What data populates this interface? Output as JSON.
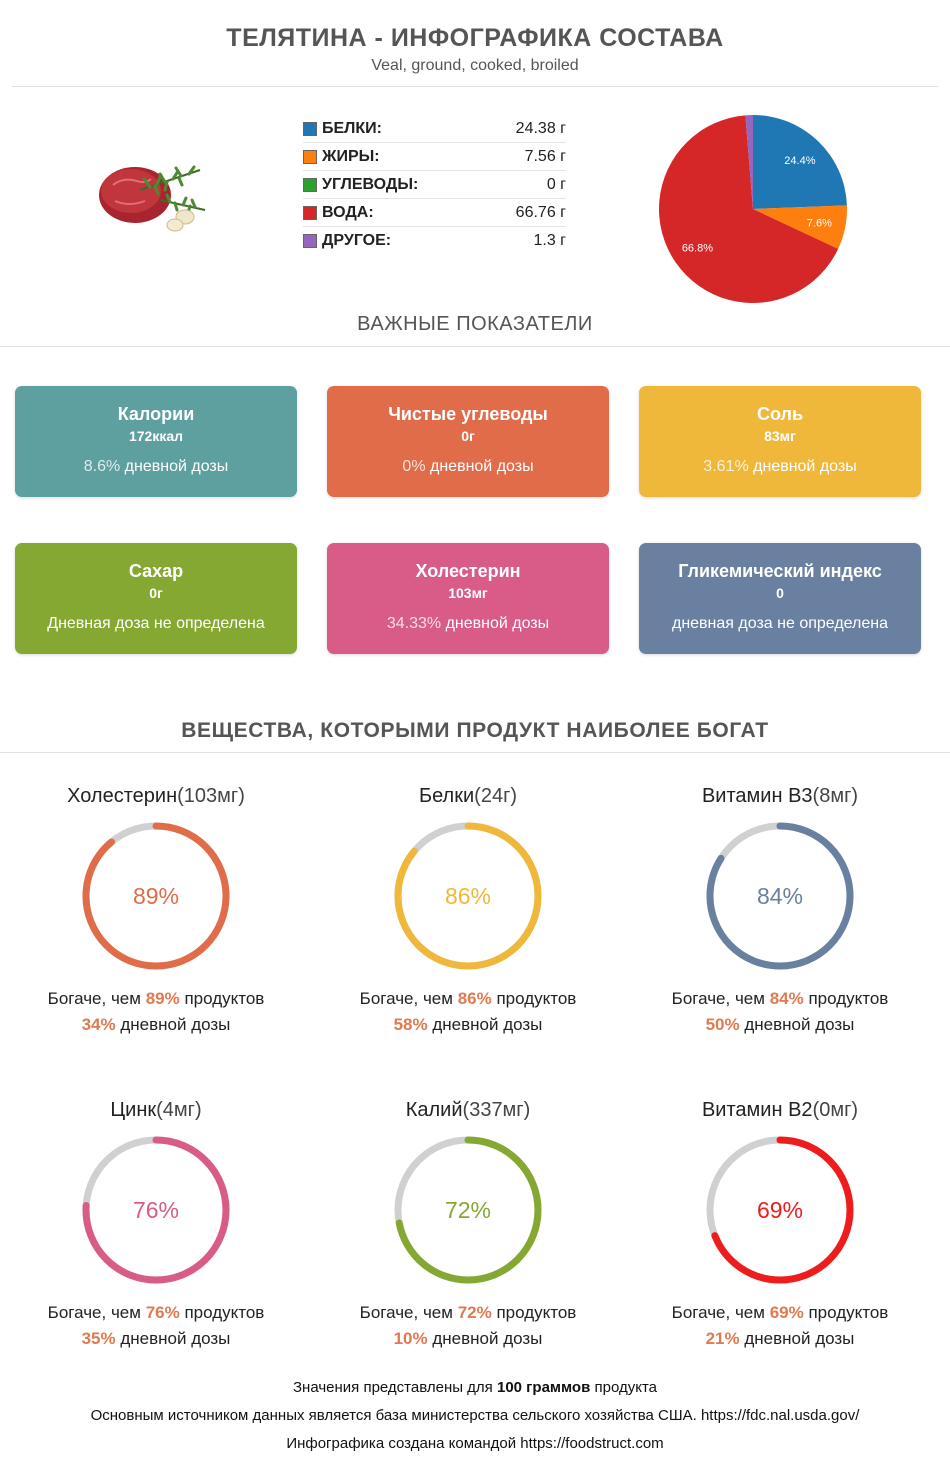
{
  "header": {
    "title": "ТЕЛЯТИНА - ИНФОГРАФИКА СОСТАВА",
    "subtitle": "Veal, ground, cooked, broiled"
  },
  "macros": [
    {
      "name": "БЕЛКИ:",
      "value": "24.38 г",
      "color": "#1f77b4"
    },
    {
      "name": "ЖИРЫ:",
      "value": "7.56 г",
      "color": "#ff7f0e"
    },
    {
      "name": "УГЛЕВОДЫ:",
      "value": "0 г",
      "color": "#2ca02c"
    },
    {
      "name": "ВОДА:",
      "value": "66.76 г",
      "color": "#d62728"
    },
    {
      "name": "ДРУГОЕ:",
      "value": "1.3 г",
      "color": "#9467bd"
    }
  ],
  "chart_data": {
    "type": "pie",
    "labels": [
      "Белки",
      "Жиры",
      "Углеводы",
      "Вода",
      "Другое"
    ],
    "values": [
      24.4,
      7.6,
      0,
      66.8,
      1.3
    ],
    "value_labels": [
      "24.4%",
      "7.6%",
      "",
      "66.8%",
      ""
    ],
    "colors": [
      "#1f77b4",
      "#ff7f0e",
      "#2ca02c",
      "#d62728",
      "#9467bd"
    ]
  },
  "key_section": {
    "heading": "ВАЖНЫЕ ПОКАЗАТЕЛИ",
    "cards": [
      {
        "title": "Калории",
        "value": "172ккал",
        "dose_pct": "8.6%",
        "dose_text": "дневной дозы",
        "color": "#5e9fa0"
      },
      {
        "title": "Чистые углеводы",
        "value": "0г",
        "dose_pct": "0%",
        "dose_text": "дневной дозы",
        "color": "#e06c4a"
      },
      {
        "title": "Соль",
        "value": "83мг",
        "dose_pct": "3.61%",
        "dose_text": "дневной дозы",
        "color": "#f0b83a"
      },
      {
        "title": "Сахар",
        "value": "0г",
        "dose_pct": "",
        "dose_text": "Дневная доза не определена",
        "color": "#85a832"
      },
      {
        "title": "Холестерин",
        "value": "103мг",
        "dose_pct": "34.33%",
        "dose_text": "дневной дозы",
        "color": "#d85b88"
      },
      {
        "title": "Гликемический индекс",
        "value": "0",
        "dose_pct": "",
        "dose_text": "дневная доза не определена",
        "color": "#6980a1"
      }
    ]
  },
  "rich_section": {
    "heading": "ВЕЩЕСТВА, КОТОРЫМИ ПРОДУКТ НАИБОЛЕЕ БОГАТ",
    "richer_prefix": "Богаче, чем",
    "richer_suffix": "продуктов",
    "dose_suffix": "дневной дозы",
    "items": [
      {
        "name": "Холестерин",
        "amount": "(103мг)",
        "percentile": 89,
        "percentile_label": "89%",
        "dose": "34%",
        "color": "#e06c4a"
      },
      {
        "name": "Белки",
        "amount": "(24г)",
        "percentile": 86,
        "percentile_label": "86%",
        "dose": "58%",
        "color": "#f0b83a"
      },
      {
        "name": "Витамин B3",
        "amount": "(8мг)",
        "percentile": 84,
        "percentile_label": "84%",
        "dose": "50%",
        "color": "#6980a1"
      },
      {
        "name": "Цинк",
        "amount": "(4мг)",
        "percentile": 76,
        "percentile_label": "76%",
        "dose": "35%",
        "color": "#d85b88"
      },
      {
        "name": "Калий",
        "amount": "(337мг)",
        "percentile": 72,
        "percentile_label": "72%",
        "dose": "10%",
        "color": "#85a832"
      },
      {
        "name": "Витамин B2",
        "amount": "(0мг)",
        "percentile": 69,
        "percentile_label": "69%",
        "dose": "21%",
        "color": "#ee1c1c"
      }
    ]
  },
  "footer": {
    "line1_prefix": "Значения представлены для",
    "line1_bold": "100 граммов",
    "line1_suffix": "продукта",
    "line2": "Основным источником данных является база министерства сельского хозяйства США. https://fdc.nal.usda.gov/",
    "line3": "Инфографика создана командой https://foodstruct.com"
  }
}
